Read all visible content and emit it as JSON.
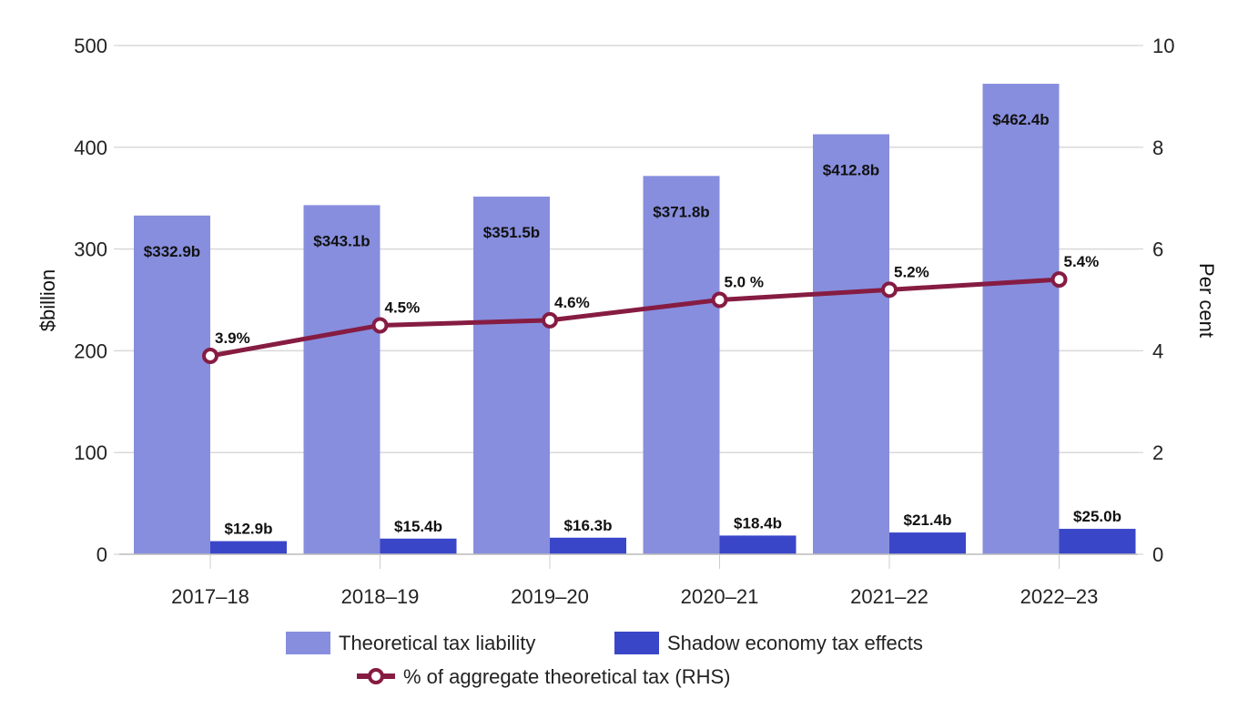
{
  "chart_data": {
    "type": "bar",
    "title": "",
    "categories": [
      "2017–18",
      "2018–19",
      "2019–20",
      "2020–21",
      "2021–22",
      "2022–23"
    ],
    "series": [
      {
        "name": "Theoretical tax liability",
        "type": "bar",
        "axis": "left",
        "color": "#878EDE",
        "values": [
          332.9,
          343.1,
          351.5,
          371.8,
          412.8,
          462.4
        ],
        "labels": [
          "$332.9b",
          "$343.1b",
          "$351.5b",
          "$371.8b",
          "$412.8b",
          "$462.4b"
        ]
      },
      {
        "name": "Shadow economy tax effects",
        "type": "bar",
        "axis": "left",
        "color": "#3A46C8",
        "values": [
          12.9,
          15.4,
          16.3,
          18.4,
          21.4,
          25.0
        ],
        "labels": [
          "$12.9b",
          "$15.4b",
          "$16.3b",
          "$18.4b",
          "$21.4b",
          "$25.0b"
        ]
      },
      {
        "name": "% of aggregate theoretical tax (RHS)",
        "type": "line",
        "axis": "right",
        "color": "#861C42",
        "values": [
          3.9,
          4.5,
          4.6,
          5.0,
          5.2,
          5.4
        ],
        "labels": [
          "3.9%",
          "4.5%",
          "4.6%",
          "5.0 %",
          "5.2%",
          "5.4%"
        ]
      }
    ],
    "ylabel": "$billion",
    "ylim": [
      0,
      500
    ],
    "yticks": [
      "0",
      "100",
      "200",
      "300",
      "400",
      "500"
    ],
    "y2label": "Per cent",
    "y2lim": [
      0,
      10
    ],
    "y2ticks": [
      "0",
      "2",
      "4",
      "6",
      "8",
      "10"
    ],
    "xlabel": "",
    "grid": true,
    "legend_position": "bottom"
  }
}
